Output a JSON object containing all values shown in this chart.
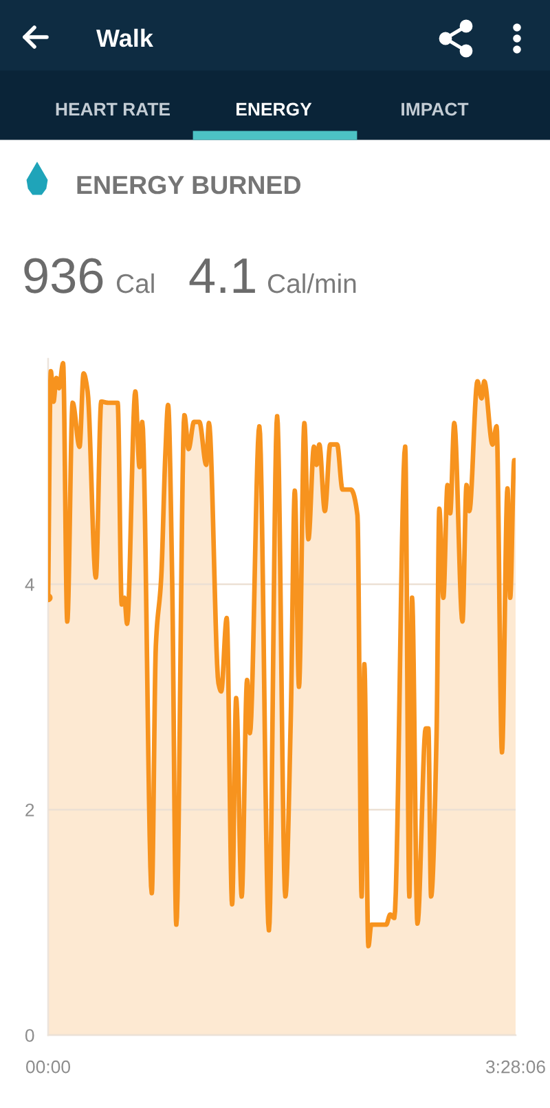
{
  "chart_data": {
    "type": "area",
    "title": "ENERGY BURNED",
    "annotations": [
      "Walk",
      "HEART RATE",
      "ENERGY",
      "IMPACT",
      "936",
      "Cal",
      "4.1",
      "Cal/min"
    ],
    "xlim": [
      0,
      3.4683
    ],
    "xticks": [
      {
        "value": 0,
        "label": "00:00"
      },
      {
        "value": 3.4683,
        "label": "3:28:06"
      }
    ],
    "ylim": [
      0,
      6
    ],
    "yticks": [
      0,
      2,
      4
    ],
    "grid": "y",
    "series": [
      {
        "color": "#f7931e",
        "x": [
          0,
          0.02,
          0.04,
          0.061,
          0.081,
          0.111,
          0.142,
          0.182,
          0.233,
          0.263,
          0.293,
          0.354,
          0.394,
          0.445,
          0.516,
          0.546,
          0.566,
          0.586,
          0.647,
          0.678,
          0.698,
          0.769,
          0.799,
          0.839,
          0.87,
          0.89,
          0.92,
          0.951,
          1.011,
          1.042,
          1.082,
          1.122,
          1.173,
          1.193,
          1.264,
          1.284,
          1.325,
          1.365,
          1.395,
          1.436,
          1.476,
          1.497,
          1.567,
          1.638,
          1.699,
          1.76,
          1.8,
          1.83,
          1.861,
          1.901,
          1.931,
          1.972,
          1.992,
          2.012,
          2.053,
          2.093,
          2.144,
          2.184,
          2.245,
          2.295,
          2.326,
          2.346,
          2.376,
          2.397,
          2.508,
          2.538,
          2.568,
          2.649,
          2.68,
          2.7,
          2.74,
          2.801,
          2.821,
          2.841,
          2.882,
          2.902,
          2.932,
          2.963,
          2.983,
          3.013,
          3.074,
          3.104,
          3.125,
          3.185,
          3.216,
          3.236,
          3.297,
          3.327,
          3.367,
          3.408,
          3.428,
          3.458,
          3.468
        ],
        "values": [
          3.88,
          5.89,
          5.62,
          5.83,
          5.74,
          5.96,
          3.67,
          5.61,
          5.22,
          5.87,
          5.71,
          4.06,
          5.62,
          5.61,
          5.61,
          3.82,
          3.88,
          3.65,
          5.71,
          5.04,
          5.44,
          1.26,
          3.45,
          4.06,
          5.16,
          5.59,
          4.06,
          0.98,
          5.5,
          5.2,
          5.44,
          5.44,
          5.06,
          5.43,
          3.12,
          3.05,
          3.7,
          1.16,
          2.99,
          1.23,
          3.15,
          2.68,
          5.4,
          0.93,
          5.49,
          1.23,
          2.8,
          4.83,
          3.09,
          5.43,
          4.4,
          5.22,
          5.06,
          5.24,
          4.65,
          5.24,
          5.24,
          4.84,
          4.84,
          4.61,
          1.23,
          3.29,
          0.79,
          0.98,
          0.98,
          1.07,
          1.04,
          5.22,
          1.23,
          3.88,
          0.99,
          2.72,
          2.72,
          1.23,
          2.68,
          4.67,
          3.88,
          4.88,
          4.63,
          5.43,
          3.67,
          4.88,
          4.65,
          5.8,
          5.65,
          5.8,
          5.24,
          5.4,
          2.51,
          4.85,
          3.88,
          5.1,
          5.1
        ]
      },
      {
        "type": "scatter",
        "color": "#f7931e",
        "marker": "circle",
        "x": [
          0
        ],
        "values": [
          3.88
        ]
      }
    ]
  }
}
